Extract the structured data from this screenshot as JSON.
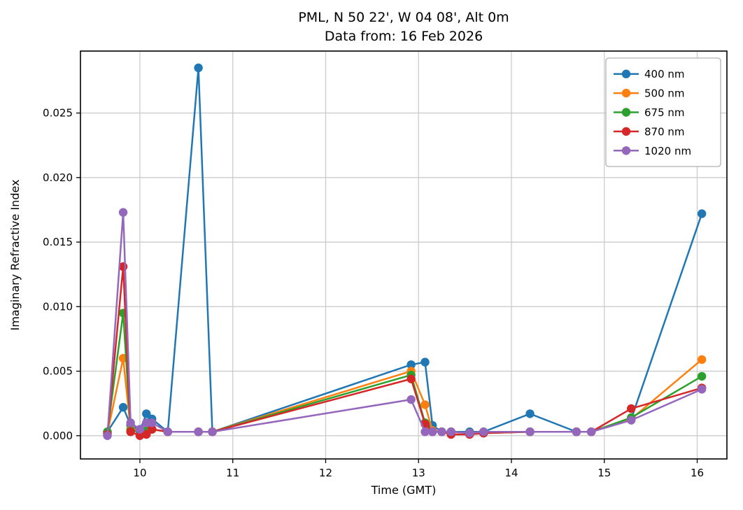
{
  "chart_data": {
    "type": "line",
    "title_line1": "PML, N 50 22', W 04 08', Alt 0m",
    "title_line2": "Data from: 16 Feb 2026",
    "xlabel": "Time (GMT)",
    "ylabel": "Imaginary Refractive Index",
    "xlim": [
      9.36,
      16.32
    ],
    "ylim": [
      -0.0018,
      0.0298
    ],
    "grid": true,
    "legend_position": "upper right",
    "xticks": [
      10,
      11,
      12,
      13,
      14,
      15,
      16
    ],
    "xtick_labels": [
      "10",
      "11",
      "12",
      "13",
      "14",
      "15",
      "16"
    ],
    "yticks": [
      0.0,
      0.005,
      0.01,
      0.015,
      0.02,
      0.025
    ],
    "ytick_labels": [
      "0.000",
      "0.005",
      "0.010",
      "0.015",
      "0.020",
      "0.025"
    ],
    "x": [
      9.65,
      9.82,
      9.9,
      10.0,
      10.07,
      10.13,
      10.3,
      10.63,
      10.78,
      12.92,
      13.07,
      13.15,
      13.25,
      13.35,
      13.55,
      13.7,
      14.2,
      14.7,
      14.86,
      15.29,
      16.05
    ],
    "series": [
      {
        "name": "400 nm",
        "color": "#1f77b4",
        "y": [
          0.0003,
          0.0022,
          0.0008,
          0.0004,
          0.0017,
          0.0013,
          0.0003,
          0.0285,
          0.0003,
          0.0055,
          0.0057,
          0.0008,
          0.0003,
          0.0003,
          0.0003,
          0.0003,
          0.0017,
          0.0003,
          0.0003,
          0.0013,
          0.0172
        ]
      },
      {
        "name": "500 nm",
        "color": "#ff7f0e",
        "y": [
          0.0002,
          0.006,
          0.0005,
          0.0004,
          0.0004,
          0.0005,
          0.0003,
          0.0003,
          0.0003,
          0.005,
          0.0024,
          0.0004,
          0.0003,
          0.0003,
          0.0002,
          0.0003,
          0.0003,
          0.0003,
          0.0003,
          0.0013,
          0.0059
        ]
      },
      {
        "name": "675 nm",
        "color": "#2ca02c",
        "y": [
          0.0003,
          0.0095,
          0.0004,
          0.0003,
          0.0004,
          0.0005,
          0.0003,
          0.0003,
          0.0003,
          0.0047,
          0.001,
          0.0003,
          0.0003,
          0.0003,
          0.0002,
          0.0002,
          0.0003,
          0.0003,
          0.0003,
          0.0014,
          0.0046
        ]
      },
      {
        "name": "870 nm",
        "color": "#d62728",
        "y": [
          0.0001,
          0.0131,
          0.0003,
          0.0,
          0.0001,
          0.0005,
          0.0003,
          0.0003,
          0.0003,
          0.0044,
          0.0009,
          0.0003,
          0.0003,
          0.0001,
          0.0001,
          0.0002,
          0.0003,
          0.0003,
          0.0003,
          0.0021,
          0.0037
        ]
      },
      {
        "name": "1020 nm",
        "color": "#9467bd",
        "y": [
          0.0,
          0.0173,
          0.001,
          0.0005,
          0.001,
          0.001,
          0.0003,
          0.0003,
          0.0003,
          0.0028,
          0.0003,
          0.0003,
          0.0003,
          0.0003,
          0.0002,
          0.0003,
          0.0003,
          0.0003,
          0.0003,
          0.0012,
          0.0036
        ]
      }
    ]
  }
}
